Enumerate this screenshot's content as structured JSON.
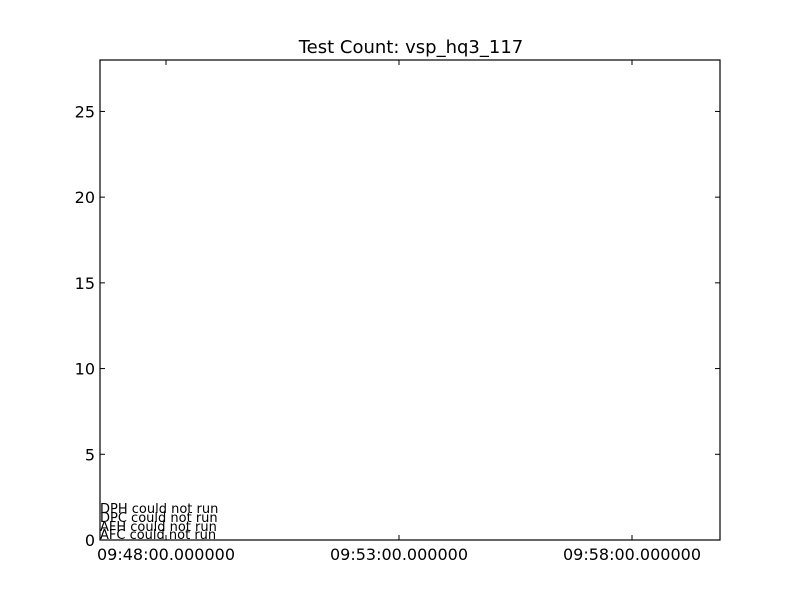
{
  "chart_data": {
    "type": "line",
    "title": "Test Count: vsp_hq3_117",
    "xlabel": "",
    "ylabel": "",
    "ylim": [
      0,
      28
    ],
    "y_ticks": [
      "0",
      "5",
      "10",
      "15",
      "20",
      "25"
    ],
    "x_ticks": [
      "09:48:00.000000",
      "09:53:00.000000",
      "09:58:00.000000"
    ],
    "series": [],
    "annotations": [
      "DPH could not run",
      "DPC could not run",
      "AFH could not run",
      "AFC could not run"
    ],
    "grid": false
  }
}
